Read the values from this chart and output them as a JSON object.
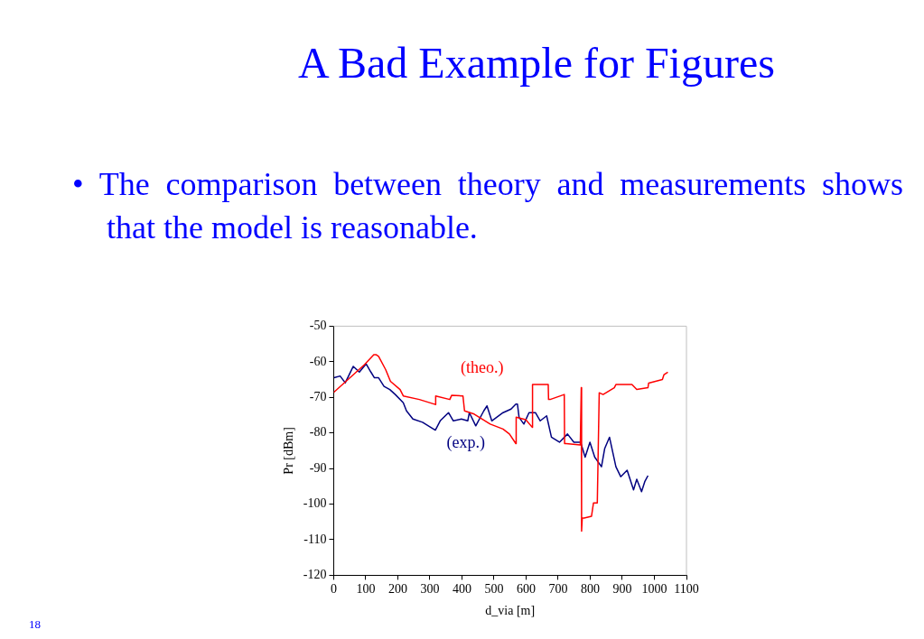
{
  "chart_data": {
    "type": "line",
    "title": "A Bad Example for Figures",
    "subtitle": "• The comparison between theory and measurements shows that the model is reasonable.",
    "xlabel": "d_via [m]",
    "ylabel": "Pr [dBm]",
    "annotations": [
      "18"
    ],
    "xlim": [
      0,
      1100
    ],
    "xticks": [
      0,
      100,
      200,
      300,
      400,
      500,
      600,
      700,
      800,
      900,
      1000,
      1100
    ],
    "ylim": [
      -120,
      -50
    ],
    "yticks": [
      -120,
      -110,
      -100,
      -90,
      -80,
      -70,
      -60,
      -50
    ],
    "grid": false,
    "legend": false,
    "marker": "none",
    "line_style": "solid",
    "series": [
      {
        "name": "(theo.)",
        "color": "#ff0000",
        "x": [
          0,
          96,
          125,
          132,
          140,
          162,
          177,
          207,
          217,
          267,
          317,
          318,
          362,
          368,
          403,
          408,
          438,
          488,
          528,
          548,
          568,
          569,
          599,
          619,
          620,
          669,
          670,
          675,
          719,
          720,
          725,
          769,
          772,
          773,
          775,
          781,
          804,
          810,
          822,
          828,
          840,
          875,
          880,
          930,
          945,
          980,
          982,
          1025,
          1030,
          1042
        ],
        "values": [
          -68.6,
          -60.8,
          -58,
          -58,
          -58.5,
          -62.2,
          -65.5,
          -67.8,
          -69.6,
          -70.6,
          -72,
          -69.6,
          -70.6,
          -69.4,
          -69.6,
          -73.8,
          -74.7,
          -77.5,
          -78.9,
          -80.3,
          -83,
          -75.6,
          -76.3,
          -78.4,
          -66.4,
          -66.4,
          -70.6,
          -70.6,
          -69.2,
          -83,
          -83,
          -83.4,
          -67.3,
          -107.6,
          -103.9,
          -103.9,
          -103.4,
          -99.7,
          -99.7,
          -68.7,
          -69.2,
          -67.3,
          -66.4,
          -66.4,
          -67.8,
          -67.3,
          -66,
          -65,
          -63.6,
          -62.9
        ]
      },
      {
        "name": "(exp.)",
        "color": "#000080",
        "x": [
          1,
          20,
          36,
          61,
          80,
          101,
          116,
          127,
          140,
          157,
          175,
          192,
          217,
          227,
          247,
          277,
          302,
          317,
          332,
          358,
          373,
          398,
          418,
          423,
          443,
          468,
          478,
          493,
          528,
          553,
          568,
          573,
          578,
          593,
          609,
          629,
          644,
          664,
          679,
          704,
          729,
          749,
          770,
          784,
          799,
          814,
          835,
          845,
          860,
          880,
          895,
          915,
          935,
          945,
          960,
          970,
          980
        ],
        "values": [
          -64.5,
          -64,
          -65.9,
          -61.3,
          -62.9,
          -60.6,
          -62.9,
          -64.5,
          -64.5,
          -66.9,
          -67.8,
          -69.2,
          -71.5,
          -73.8,
          -76.1,
          -77,
          -78.4,
          -79.2,
          -76.6,
          -74.3,
          -76.6,
          -76.1,
          -76.6,
          -74.3,
          -78,
          -73.8,
          -72.4,
          -76.6,
          -74.3,
          -73.3,
          -71.9,
          -71.9,
          -75.6,
          -77.5,
          -74.3,
          -74.3,
          -76.6,
          -75.2,
          -81.2,
          -82.6,
          -80.3,
          -82.6,
          -82.6,
          -86.8,
          -82.6,
          -86.8,
          -89.5,
          -84.4,
          -81.2,
          -89.5,
          -92.3,
          -90.5,
          -96,
          -93,
          -96.5,
          -93.7,
          -92
        ]
      }
    ]
  }
}
